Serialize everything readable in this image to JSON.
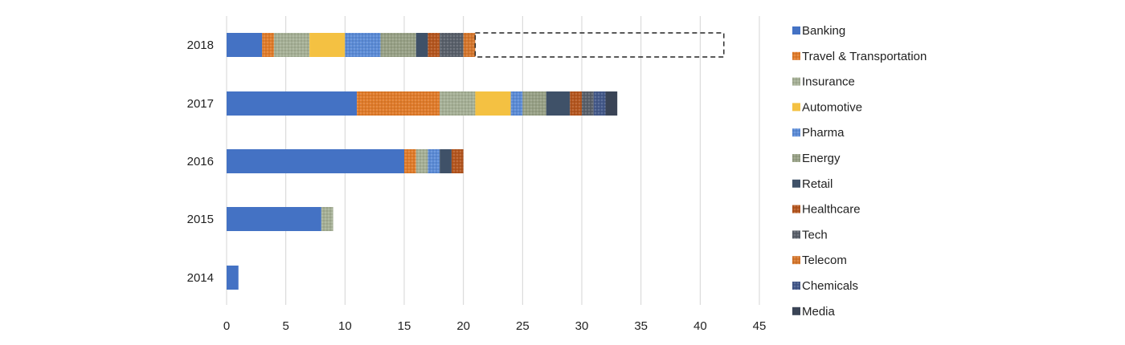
{
  "chart_data": {
    "type": "bar",
    "orientation": "horizontal",
    "stacked": true,
    "categories": [
      "2018",
      "2017",
      "2016",
      "2015",
      "2014"
    ],
    "xlim": [
      0,
      45
    ],
    "xticks": [
      0,
      5,
      10,
      15,
      20,
      25,
      30,
      35,
      40,
      45
    ],
    "grid": "vertical",
    "legend_position": "right",
    "series": [
      {
        "name": "Banking",
        "color": "#4472C4",
        "pattern": "solid",
        "values": [
          3,
          11,
          15,
          8,
          1
        ]
      },
      {
        "name": "Travel & Transportation",
        "color": "#E07B2A",
        "pattern": "dots",
        "values": [
          1,
          7,
          1,
          0,
          0
        ]
      },
      {
        "name": "Insurance",
        "color": "#A5AF95",
        "pattern": "dots",
        "values": [
          3,
          3,
          1,
          1,
          0
        ]
      },
      {
        "name": "Automotive",
        "color": "#F4C142",
        "pattern": "solid",
        "values": [
          3,
          3,
          0,
          0,
          0
        ]
      },
      {
        "name": "Pharma",
        "color": "#5B8BD6",
        "pattern": "dots",
        "values": [
          3,
          1,
          1,
          0,
          0
        ]
      },
      {
        "name": "Energy",
        "color": "#97A085",
        "pattern": "dots",
        "values": [
          3,
          2,
          0,
          0,
          0
        ]
      },
      {
        "name": "Retail",
        "color": "#3F5168",
        "pattern": "solid",
        "values": [
          1,
          2,
          1,
          0,
          0
        ]
      },
      {
        "name": "Healthcare",
        "color": "#B4561F",
        "pattern": "dots",
        "values": [
          1,
          1,
          1,
          0,
          0
        ]
      },
      {
        "name": "Tech",
        "color": "#59606A",
        "pattern": "dots",
        "values": [
          2,
          1,
          0,
          0,
          0
        ]
      },
      {
        "name": "Telecom",
        "color": "#D5762C",
        "pattern": "dots",
        "values": [
          1,
          0,
          0,
          0,
          0
        ]
      },
      {
        "name": "Chemicals",
        "color": "#44598A",
        "pattern": "dots",
        "values": [
          0,
          1,
          0,
          0,
          0
        ]
      },
      {
        "name": "Media",
        "color": "#3A4456",
        "pattern": "solid",
        "values": [
          0,
          1,
          0,
          0,
          0
        ]
      }
    ],
    "projection": {
      "category": "2018",
      "from": 21,
      "to": 42,
      "style": "dashed-outline"
    }
  }
}
